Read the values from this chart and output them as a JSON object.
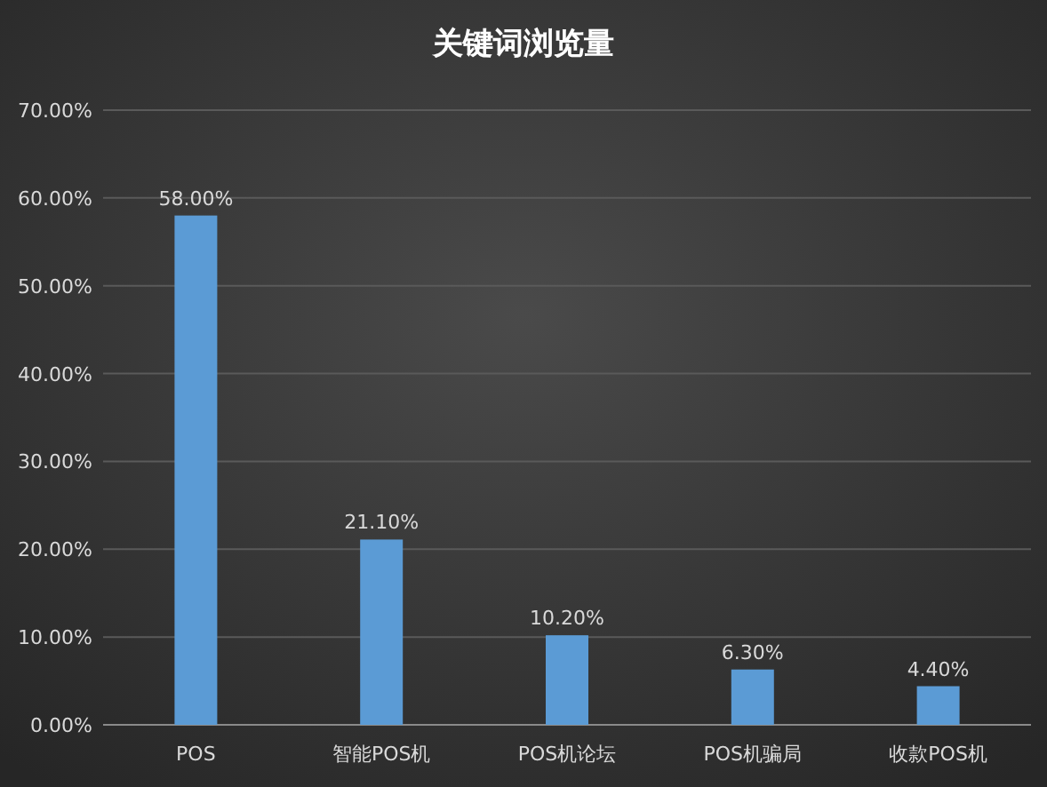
{
  "chart_data": {
    "type": "bar",
    "title": "关键词浏览量",
    "categories": [
      "POS",
      "智能POS机",
      "POS机论坛",
      "POS机骗局",
      "收款POS机"
    ],
    "values": [
      58,
      21.1,
      10.2,
      6.3,
      4.4
    ],
    "value_labels": [
      "58.00%",
      "21.10%",
      "10.20%",
      "6.30%",
      "4.40%"
    ],
    "color": "#5b9bd5",
    "ylim": [
      0,
      70
    ],
    "yticks": [
      {
        "value": 0,
        "label": "0.00%"
      },
      {
        "value": 10,
        "label": "10.00%"
      },
      {
        "value": 20,
        "label": "20.00%"
      },
      {
        "value": 30,
        "label": "30.00%"
      },
      {
        "value": 40,
        "label": "40.00%"
      },
      {
        "value": 50,
        "label": "50.00%"
      },
      {
        "value": 60,
        "label": "60.00%"
      },
      {
        "value": 70,
        "label": "70.00%"
      }
    ],
    "grid": "y"
  }
}
